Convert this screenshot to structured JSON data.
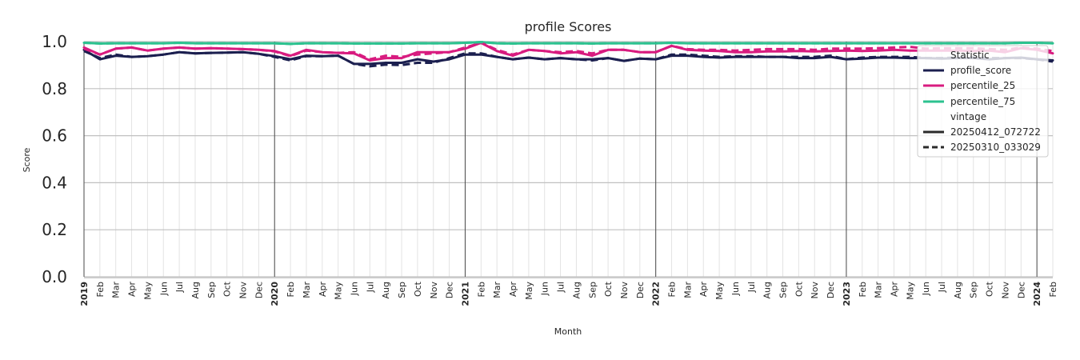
{
  "chart_data": {
    "type": "line",
    "title": "profile Scores",
    "xlabel": "Month",
    "ylabel": "Score",
    "ylim": [
      0.0,
      1.0
    ],
    "yticks": [
      "0.0",
      "0.2",
      "0.4",
      "0.6",
      "0.8",
      "1.0"
    ],
    "grid": true,
    "legend_position": "top-right",
    "x_tick_labels": [
      "2019",
      "Feb",
      "Mar",
      "Apr",
      "May",
      "Jun",
      "Jul",
      "Aug",
      "Sep",
      "Oct",
      "Nov",
      "Dec",
      "2020",
      "Feb",
      "Mar",
      "Apr",
      "May",
      "Jun",
      "Jul",
      "Aug",
      "Sep",
      "Oct",
      "Nov",
      "Dec",
      "2021",
      "Feb",
      "Mar",
      "Apr",
      "May",
      "Jun",
      "Jul",
      "Aug",
      "Sep",
      "Oct",
      "Nov",
      "Dec",
      "2022",
      "Feb",
      "Mar",
      "Apr",
      "May",
      "Jun",
      "Jul",
      "Aug",
      "Sep",
      "Oct",
      "Nov",
      "Dec",
      "2023",
      "Feb",
      "Mar",
      "Apr",
      "May",
      "Jun",
      "Jul",
      "Aug",
      "Sep",
      "Oct",
      "Nov",
      "Dec",
      "2024",
      "Feb"
    ],
    "x": [
      "2019-01",
      "2019-02",
      "2019-03",
      "2019-04",
      "2019-05",
      "2019-06",
      "2019-07",
      "2019-08",
      "2019-09",
      "2019-10",
      "2019-11",
      "2019-12",
      "2020-01",
      "2020-02",
      "2020-03",
      "2020-04",
      "2020-05",
      "2020-06",
      "2020-07",
      "2020-08",
      "2020-09",
      "2020-10",
      "2020-11",
      "2020-12",
      "2021-01",
      "2021-02",
      "2021-03",
      "2021-04",
      "2021-05",
      "2021-06",
      "2021-07",
      "2021-08",
      "2021-09",
      "2021-10",
      "2021-11",
      "2021-12",
      "2022-01",
      "2022-02",
      "2022-03",
      "2022-04",
      "2022-05",
      "2022-06",
      "2022-07",
      "2022-08",
      "2022-09",
      "2022-10",
      "2022-11",
      "2022-12",
      "2023-01",
      "2023-02",
      "2023-03",
      "2023-04",
      "2023-05",
      "2023-06",
      "2023-07",
      "2023-08",
      "2023-09",
      "2023-10",
      "2023-11",
      "2023-12",
      "2024-01",
      "2024-02"
    ],
    "legend": {
      "statistic_title": "Statistic",
      "statistic_items": [
        {
          "label": "profile_score",
          "color": "#1b1f4f"
        },
        {
          "label": "percentile_25",
          "color": "#d81b7f"
        },
        {
          "label": "percentile_75",
          "color": "#2cc28f"
        }
      ],
      "vintage_title": "vintage",
      "vintage_items": [
        {
          "label": "20250412_072722",
          "style": "solid"
        },
        {
          "label": "20250310_033029",
          "style": "dashed"
        }
      ]
    },
    "series": [
      {
        "statistic": "profile_score",
        "vintage": "20250412_072722",
        "color": "#1b1f4f",
        "dash": "solid",
        "values": [
          0.965,
          0.925,
          0.94,
          0.935,
          0.938,
          0.945,
          0.955,
          0.95,
          0.952,
          0.953,
          0.955,
          0.948,
          0.938,
          0.925,
          0.94,
          0.938,
          0.94,
          0.905,
          0.905,
          0.91,
          0.91,
          0.925,
          0.915,
          0.925,
          0.945,
          0.945,
          0.935,
          0.925,
          0.932,
          0.925,
          0.93,
          0.925,
          0.925,
          0.93,
          0.918,
          0.928,
          0.925,
          0.94,
          0.94,
          0.935,
          0.932,
          0.935,
          0.935,
          0.935,
          0.935,
          0.93,
          0.93,
          0.935,
          0.925,
          0.928,
          0.932,
          0.932,
          0.93,
          0.93,
          0.928,
          0.93,
          0.93,
          0.925,
          0.93,
          0.932,
          0.925,
          0.92
        ]
      },
      {
        "statistic": "profile_score",
        "vintage": "20250310_033029",
        "color": "#1b1f4f",
        "dash": "dashed",
        "values": [
          0.96,
          0.93,
          0.945,
          0.935,
          0.938,
          0.945,
          0.955,
          0.95,
          0.952,
          0.953,
          0.955,
          0.948,
          0.935,
          0.92,
          0.938,
          0.938,
          0.94,
          0.905,
          0.895,
          0.902,
          0.9,
          0.91,
          0.91,
          0.93,
          0.95,
          0.95,
          0.935,
          0.925,
          0.932,
          0.925,
          0.93,
          0.925,
          0.92,
          0.93,
          0.918,
          0.928,
          0.925,
          0.945,
          0.945,
          0.94,
          0.935,
          0.938,
          0.938,
          0.935,
          0.935,
          0.935,
          0.935,
          0.94,
          0.925,
          0.932,
          0.935,
          0.935,
          0.935,
          0.93,
          0.93,
          0.932,
          0.932,
          0.93,
          0.93,
          0.93,
          0.925,
          0.915
        ]
      },
      {
        "statistic": "percentile_25",
        "vintage": "20250412_072722",
        "color": "#d81b7f",
        "dash": "solid",
        "values": [
          0.975,
          0.945,
          0.97,
          0.975,
          0.962,
          0.97,
          0.975,
          0.97,
          0.972,
          0.97,
          0.968,
          0.965,
          0.96,
          0.94,
          0.965,
          0.955,
          0.952,
          0.95,
          0.92,
          0.93,
          0.93,
          0.955,
          0.955,
          0.955,
          0.97,
          0.995,
          0.96,
          0.94,
          0.965,
          0.96,
          0.95,
          0.955,
          0.94,
          0.965,
          0.965,
          0.955,
          0.955,
          0.982,
          0.965,
          0.962,
          0.96,
          0.955,
          0.955,
          0.958,
          0.958,
          0.96,
          0.958,
          0.96,
          0.962,
          0.96,
          0.962,
          0.965,
          0.962,
          0.962,
          0.962,
          0.962,
          0.96,
          0.962,
          0.955,
          0.972,
          0.965,
          0.95
        ]
      },
      {
        "statistic": "percentile_25",
        "vintage": "20250310_033029",
        "color": "#d81b7f",
        "dash": "dashed",
        "values": [
          0.97,
          0.945,
          0.97,
          0.975,
          0.962,
          0.97,
          0.975,
          0.97,
          0.972,
          0.97,
          0.968,
          0.965,
          0.958,
          0.938,
          0.962,
          0.955,
          0.952,
          0.955,
          0.925,
          0.94,
          0.935,
          0.945,
          0.95,
          0.955,
          0.975,
          0.995,
          0.965,
          0.945,
          0.965,
          0.96,
          0.955,
          0.96,
          0.95,
          0.965,
          0.965,
          0.955,
          0.955,
          0.982,
          0.968,
          0.965,
          0.965,
          0.962,
          0.965,
          0.968,
          0.968,
          0.968,
          0.965,
          0.97,
          0.97,
          0.97,
          0.972,
          0.975,
          0.978,
          0.97,
          0.972,
          0.972,
          0.972,
          0.968,
          0.965,
          0.975,
          0.97,
          0.96
        ]
      },
      {
        "statistic": "percentile_75",
        "vintage": "20250412_072722",
        "color": "#2cc28f",
        "dash": "solid",
        "values": [
          0.995,
          0.992,
          0.993,
          0.993,
          0.993,
          0.993,
          0.995,
          0.993,
          0.993,
          0.993,
          0.993,
          0.993,
          0.993,
          0.99,
          0.993,
          0.993,
          0.993,
          0.992,
          0.992,
          0.992,
          0.992,
          0.993,
          0.993,
          0.993,
          0.995,
          0.998,
          0.993,
          0.992,
          0.993,
          0.993,
          0.993,
          0.993,
          0.992,
          0.993,
          0.993,
          0.993,
          0.993,
          0.995,
          0.993,
          0.993,
          0.993,
          0.993,
          0.993,
          0.993,
          0.993,
          0.993,
          0.993,
          0.993,
          0.993,
          0.993,
          0.993,
          0.993,
          0.993,
          0.993,
          0.993,
          0.993,
          0.993,
          0.993,
          0.993,
          0.995,
          0.995,
          0.993
        ]
      },
      {
        "statistic": "percentile_75",
        "vintage": "20250310_033029",
        "color": "#2cc28f",
        "dash": "dashed",
        "values": [
          0.995,
          0.992,
          0.993,
          0.993,
          0.993,
          0.993,
          0.995,
          0.993,
          0.993,
          0.993,
          0.993,
          0.993,
          0.993,
          0.99,
          0.993,
          0.993,
          0.993,
          0.992,
          0.992,
          0.992,
          0.992,
          0.993,
          0.993,
          0.993,
          0.995,
          0.998,
          0.993,
          0.992,
          0.993,
          0.993,
          0.993,
          0.993,
          0.992,
          0.993,
          0.993,
          0.993,
          0.993,
          0.995,
          0.993,
          0.993,
          0.993,
          0.993,
          0.993,
          0.993,
          0.993,
          0.993,
          0.993,
          0.993,
          0.993,
          0.993,
          0.993,
          0.993,
          0.993,
          0.993,
          0.993,
          0.993,
          0.993,
          0.993,
          0.993,
          0.995,
          0.995,
          0.993
        ]
      }
    ]
  }
}
